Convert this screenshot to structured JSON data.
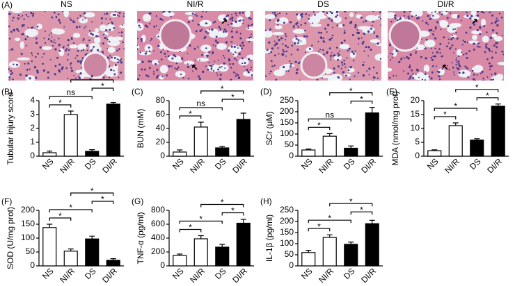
{
  "figure": {
    "panel_a": {
      "label": "(A)",
      "images": [
        "NS",
        "NI/R",
        "DS",
        "DI/R"
      ]
    }
  },
  "chart_data": [
    {
      "type": "bar",
      "panel_label": "(B)",
      "ylabel": "Tubular injury score",
      "categories": [
        "NS",
        "NI/R",
        "DS",
        "DI/R"
      ],
      "values": [
        0.25,
        3.0,
        0.35,
        3.75
      ],
      "errors": [
        0.12,
        0.25,
        0.12,
        0.12
      ],
      "colors": [
        "#ffffff",
        "#ffffff",
        "#000000",
        "#000000"
      ],
      "ylim": [
        0,
        4
      ],
      "yticks": [
        0,
        1,
        2,
        3,
        4
      ],
      "annotations": [
        {
          "label": "*",
          "between": [
            "NS",
            "NI/R"
          ]
        },
        {
          "label": "ns",
          "between": [
            "NS",
            "DS"
          ]
        },
        {
          "label": "*",
          "between": [
            "DS",
            "DI/R"
          ]
        },
        {
          "label": "*",
          "between": [
            "NI/R",
            "DI/R"
          ]
        }
      ]
    },
    {
      "type": "bar",
      "panel_label": "(C)",
      "ylabel": "BUN (mM)",
      "categories": [
        "NS",
        "NI/R",
        "DS",
        "DI/R"
      ],
      "values": [
        6,
        42,
        12,
        53
      ],
      "errors": [
        3,
        7,
        2,
        9
      ],
      "colors": [
        "#ffffff",
        "#ffffff",
        "#000000",
        "#000000"
      ],
      "ylim": [
        0,
        80
      ],
      "yticks": [
        0,
        20,
        40,
        60,
        80
      ],
      "annotations": [
        {
          "label": "*",
          "between": [
            "NS",
            "NI/R"
          ]
        },
        {
          "label": "ns",
          "between": [
            "NS",
            "DS"
          ]
        },
        {
          "label": "*",
          "between": [
            "DS",
            "DI/R"
          ]
        },
        {
          "label": "*",
          "between": [
            "NI/R",
            "DI/R"
          ]
        }
      ]
    },
    {
      "type": "bar",
      "panel_label": "(D)",
      "ylabel": "SCr (μM)",
      "categories": [
        "NS",
        "NI/R",
        "DS",
        "DI/R"
      ],
      "values": [
        28,
        90,
        36,
        195
      ],
      "errors": [
        4,
        12,
        10,
        25
      ],
      "colors": [
        "#ffffff",
        "#ffffff",
        "#000000",
        "#000000"
      ],
      "ylim": [
        0,
        250
      ],
      "yticks": [
        0,
        50,
        100,
        150,
        200,
        250
      ],
      "annotations": [
        {
          "label": "*",
          "between": [
            "NS",
            "NI/R"
          ]
        },
        {
          "label": "ns",
          "between": [
            "NS",
            "DS"
          ]
        },
        {
          "label": "*",
          "between": [
            "DS",
            "DI/R"
          ]
        },
        {
          "label": "*",
          "between": [
            "NI/R",
            "DI/R"
          ]
        }
      ]
    },
    {
      "type": "bar",
      "panel_label": "(E)",
      "ylabel": "MDA (nmol/mg prot)",
      "categories": [
        "NS",
        "NI/R",
        "DS",
        "DI/R"
      ],
      "values": [
        2,
        11,
        5.8,
        18
      ],
      "errors": [
        0.3,
        1,
        0.5,
        0.8
      ],
      "colors": [
        "#ffffff",
        "#ffffff",
        "#000000",
        "#000000"
      ],
      "ylim": [
        0,
        20
      ],
      "yticks": [
        0,
        5,
        10,
        15,
        20
      ],
      "annotations": [
        {
          "label": "*",
          "between": [
            "NS",
            "NI/R"
          ]
        },
        {
          "label": "*",
          "between": [
            "NS",
            "DS"
          ]
        },
        {
          "label": "*",
          "between": [
            "DS",
            "DI/R"
          ]
        },
        {
          "label": "*",
          "between": [
            "NI/R",
            "DI/R"
          ]
        }
      ]
    },
    {
      "type": "bar",
      "panel_label": "(F)",
      "ylabel": "SOD (U/mg prot)",
      "categories": [
        "NS",
        "NI/R",
        "DS",
        "DI/R"
      ],
      "values": [
        138,
        53,
        97,
        20
      ],
      "errors": [
        12,
        8,
        10,
        6
      ],
      "colors": [
        "#ffffff",
        "#ffffff",
        "#000000",
        "#000000"
      ],
      "ylim": [
        0,
        200
      ],
      "yticks": [
        0,
        50,
        100,
        150,
        200
      ],
      "annotations": [
        {
          "label": "*",
          "between": [
            "NS",
            "NI/R"
          ]
        },
        {
          "label": "*",
          "between": [
            "NS",
            "DS"
          ]
        },
        {
          "label": "*",
          "between": [
            "DS",
            "DI/R"
          ]
        },
        {
          "label": "*",
          "between": [
            "NI/R",
            "DI/R"
          ]
        }
      ]
    },
    {
      "type": "bar",
      "panel_label": "(G)",
      "ylabel": "TNF-α (pg/ml)",
      "categories": [
        "NS",
        "NI/R",
        "DS",
        "DI/R"
      ],
      "values": [
        150,
        390,
        270,
        615
      ],
      "errors": [
        20,
        45,
        40,
        55
      ],
      "colors": [
        "#ffffff",
        "#ffffff",
        "#000000",
        "#000000"
      ],
      "ylim": [
        0,
        800
      ],
      "yticks": [
        0,
        200,
        400,
        600,
        800
      ],
      "annotations": [
        {
          "label": "*",
          "between": [
            "NS",
            "NI/R"
          ]
        },
        {
          "label": "*",
          "between": [
            "NS",
            "DS"
          ]
        },
        {
          "label": "*",
          "between": [
            "DS",
            "DI/R"
          ]
        },
        {
          "label": "*",
          "between": [
            "NI/R",
            "DI/R"
          ]
        }
      ]
    },
    {
      "type": "bar",
      "panel_label": "(H)",
      "ylabel": "IL-1β (pg/ml)",
      "categories": [
        "NS",
        "NI/R",
        "DS",
        "DI/R"
      ],
      "values": [
        60,
        128,
        97,
        190
      ],
      "errors": [
        10,
        12,
        10,
        15
      ],
      "colors": [
        "#ffffff",
        "#ffffff",
        "#000000",
        "#000000"
      ],
      "ylim": [
        0,
        250
      ],
      "yticks": [
        0,
        50,
        100,
        150,
        200,
        250
      ],
      "annotations": [
        {
          "label": "*",
          "between": [
            "NS",
            "NI/R"
          ]
        },
        {
          "label": "*",
          "between": [
            "NS",
            "DS"
          ]
        },
        {
          "label": "*",
          "between": [
            "DS",
            "DI/R"
          ]
        },
        {
          "label": "*",
          "between": [
            "NI/R",
            "DI/R"
          ]
        }
      ]
    }
  ]
}
